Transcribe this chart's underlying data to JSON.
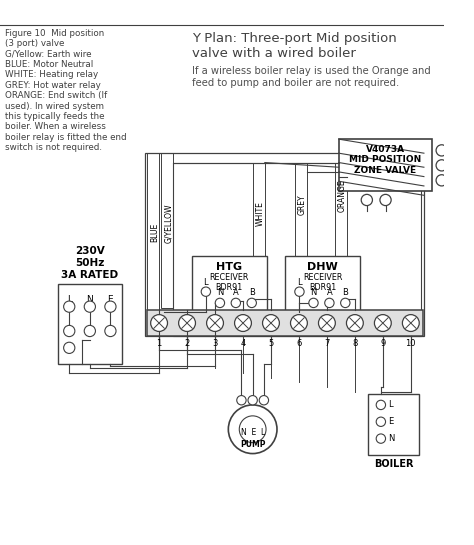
{
  "title": "Y Plan: Three-port Mid position\nvalve with a wired boiler",
  "subtitle": "If a wireless boiler relay is used the Orange and\nfeed to pump and boiler are not required.",
  "figure_label": "Figure 10  Mid position\n(3 port) valve\nG/Yellow: Earth wire\nBLUE: Motor Neutral\nWHITE: Heating relay\nGREY: Hot water relay\nORANGE: End switch (If\nused). In wired system\nthis typically feeds the\nboiler. When a wireless\nboiler relay is fitted the end\nswitch is not required.",
  "bg_color": "#ffffff",
  "lc": "#404040",
  "valve_label": "V4073A\nMID POSITION\nZONE VALVE",
  "htg_label": "HTG",
  "dhw_label": "DHW",
  "receiver_label": "RECEIVER\nBDR91",
  "pump_label": "N  E  L\nPUMP",
  "boiler_label": "BOILER",
  "supply_label": "230V\n50Hz\n3A RATED",
  "lne_labels": [
    "L",
    "N",
    "E"
  ],
  "terminal_numbers": [
    "1",
    "2",
    "3",
    "4",
    "5",
    "6",
    "7",
    "8",
    "9",
    "10"
  ],
  "wire_labels_rotated": [
    "BLUE",
    "G/YELLOW",
    "WHITE",
    "GREY",
    "ORANGE"
  ],
  "boiler_terminals": [
    "L",
    "E",
    "N"
  ]
}
